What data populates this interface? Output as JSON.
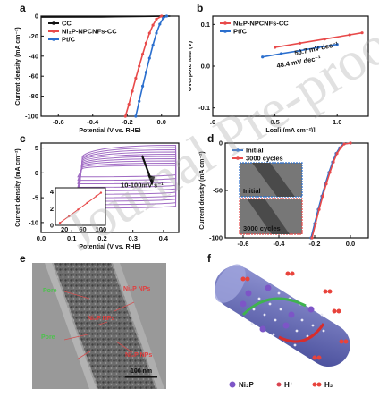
{
  "panels": {
    "a": {
      "label": "a"
    },
    "b": {
      "label": "b"
    },
    "c": {
      "label": "c"
    },
    "d": {
      "label": "d"
    },
    "e": {
      "label": "e"
    },
    "f": {
      "label": "f"
    }
  },
  "chart_data": [
    {
      "panel": "a",
      "type": "line",
      "xlabel": "Potential (V vs. RHE)",
      "ylabel": "Current density (mA cm⁻²)",
      "xlim": [
        -0.7,
        0.1
      ],
      "ylim": [
        -100,
        0
      ],
      "xticks": [
        "-0.6",
        "-0.4",
        "-0.2",
        "0.0"
      ],
      "yticks": [
        "0",
        "-20",
        "-40",
        "-60",
        "-80",
        "-100"
      ],
      "legend_position": "top-left",
      "series": [
        {
          "name": "CC",
          "color": "#111111",
          "x": [
            -0.7,
            -0.35,
            -0.1,
            0.0,
            0.05
          ],
          "y": [
            -1,
            -0.8,
            -0.3,
            -0.1,
            0
          ]
        },
        {
          "name": "Ni₂P-NPCNFs-CC",
          "color": "#e84a4a",
          "x": [
            -0.21,
            -0.19,
            -0.17,
            -0.15,
            -0.13,
            -0.11,
            -0.09,
            -0.07,
            -0.05,
            -0.03,
            0.0
          ],
          "y": [
            -100,
            -88,
            -75,
            -62,
            -50,
            -38,
            -27,
            -17,
            -9,
            -3,
            0
          ]
        },
        {
          "name": "Pt/C",
          "color": "#2b6fce",
          "x": [
            -0.15,
            -0.13,
            -0.11,
            -0.09,
            -0.07,
            -0.05,
            -0.03,
            -0.01,
            0.01,
            0.03
          ],
          "y": [
            -100,
            -85,
            -70,
            -56,
            -42,
            -29,
            -17,
            -8,
            -2,
            0
          ]
        }
      ]
    },
    {
      "panel": "b",
      "type": "line",
      "xlabel": "Log[j (mA cm⁻²)]",
      "ylabel": "Overpotential (V)",
      "xlim": [
        0.0,
        1.25
      ],
      "ylim": [
        -0.12,
        0.12
      ],
      "xticks": [
        ".0",
        "0.5",
        "1.0"
      ],
      "yticks": [
        "0.1",
        "0.0",
        "-0.1"
      ],
      "legend_position": "top-left",
      "annotations": [
        "50.7 mV dec⁻¹",
        "48.4 mV dec⁻¹"
      ],
      "series": [
        {
          "name": "Ni₂P-NPCNFs-CC",
          "color": "#e84a4a",
          "x": [
            0.5,
            0.7,
            0.9,
            1.1,
            1.2
          ],
          "y": [
            0.045,
            0.055,
            0.065,
            0.075,
            0.08
          ]
        },
        {
          "name": "Pt/C",
          "color": "#2b6fce",
          "x": [
            0.4,
            0.55,
            0.7,
            0.85,
            1.0
          ],
          "y": [
            0.022,
            0.03,
            0.037,
            0.045,
            0.052
          ]
        }
      ]
    },
    {
      "panel": "c",
      "type": "line",
      "xlabel": "Potential (V vs. RHE)",
      "ylabel": "Current density (mA cm⁻²)",
      "xlim": [
        0.0,
        0.45
      ],
      "ylim": [
        -12,
        6
      ],
      "xticks": [
        "0.0",
        "0.1",
        "0.2",
        "0.3",
        "0.4"
      ],
      "yticks": [
        "5",
        "0",
        "-5",
        "-10"
      ],
      "annotations": [
        "10-100mV s⁻¹"
      ],
      "inset": {
        "xticks": [
          "20",
          "60",
          "100"
        ],
        "yticks": [
          "4",
          "2",
          "0"
        ],
        "x": [
          10,
          30,
          50,
          70,
          90,
          100
        ],
        "y": [
          0.3,
          1.1,
          1.9,
          2.7,
          3.5,
          3.9
        ]
      }
    },
    {
      "panel": "d",
      "type": "line",
      "xlabel": "",
      "ylabel": "Current density (mA cm⁻²)",
      "xlim": [
        -0.7,
        0.1
      ],
      "ylim": [
        -100,
        0
      ],
      "xticks": [
        "-0.6",
        "-0.4",
        "-0.2",
        "0.0"
      ],
      "yticks": [
        "0",
        "-50",
        "-100"
      ],
      "legend_position": "top-left",
      "inset_labels": [
        "Initial",
        "3000 cycles"
      ],
      "series": [
        {
          "name": "Initial",
          "color": "#2b6fce",
          "x": [
            -0.22,
            -0.2,
            -0.18,
            -0.16,
            -0.14,
            -0.12,
            -0.1,
            -0.08,
            -0.06,
            -0.04,
            0.0
          ],
          "y": [
            -100,
            -85,
            -70,
            -56,
            -43,
            -31,
            -20,
            -11,
            -5,
            -1,
            0
          ]
        },
        {
          "name": "3000 cycles",
          "color": "#e84a4a",
          "x": [
            -0.215,
            -0.195,
            -0.175,
            -0.155,
            -0.135,
            -0.115,
            -0.095,
            -0.075,
            -0.055,
            -0.035,
            0.0
          ],
          "y": [
            -100,
            -85,
            -70,
            -56,
            -43,
            -31,
            -20,
            -11,
            -5,
            -1,
            0
          ]
        }
      ]
    }
  ],
  "panel_e": {
    "labels": [
      "Pore",
      "Ni₂P NPs",
      "Ni₂P NPs",
      "Pore",
      "Ni₂P NPs"
    ],
    "scalebar": "100 nm"
  },
  "panel_f": {
    "legend": [
      "Ni₂P",
      "H⁺",
      "H₂"
    ]
  },
  "watermark": "Journal Pre-proof"
}
